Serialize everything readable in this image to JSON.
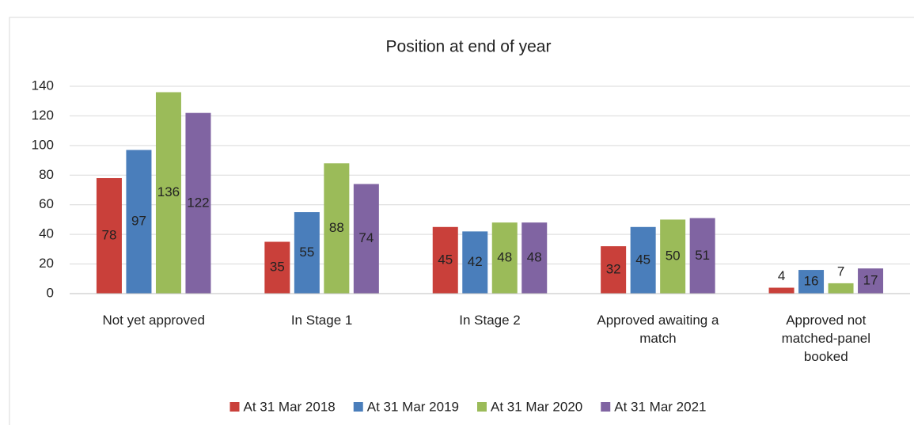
{
  "chart_data": {
    "type": "bar",
    "title": "Position at end of year",
    "categories": [
      "Not yet approved",
      "In Stage 1",
      "In Stage 2",
      "Approved awaiting a match",
      "Approved not matched-panel booked"
    ],
    "series": [
      {
        "name": "At 31 Mar 2018",
        "color": "#c9403a",
        "values": [
          78,
          35,
          45,
          32,
          4
        ]
      },
      {
        "name": "At 31 Mar 2019",
        "color": "#4a7ebb",
        "values": [
          97,
          55,
          42,
          45,
          16
        ]
      },
      {
        "name": "At 31 Mar 2020",
        "color": "#9bbb59",
        "values": [
          136,
          88,
          48,
          50,
          7
        ]
      },
      {
        "name": "At 31 Mar 2021",
        "color": "#8064a2",
        "values": [
          122,
          74,
          48,
          51,
          17
        ]
      }
    ],
    "ylim": [
      0,
      140
    ],
    "yticks": [
      0,
      20,
      40,
      60,
      80,
      100,
      120,
      140
    ],
    "grid": true,
    "legend": "bottom"
  }
}
